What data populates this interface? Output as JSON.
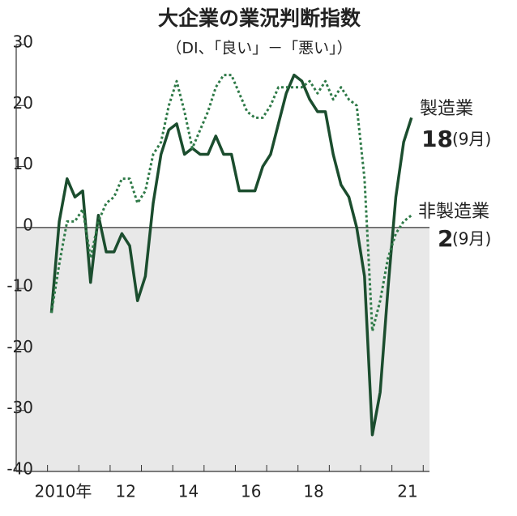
{
  "chart_data": {
    "type": "line",
    "title": "大企業の業況判断指数",
    "subtitle": "（DI、「良い」－「悪い」）",
    "x": [
      2010.125,
      2010.375,
      2010.625,
      2010.875,
      2011.125,
      2011.375,
      2011.625,
      2011.875,
      2012.125,
      2012.375,
      2012.625,
      2012.875,
      2013.125,
      2013.375,
      2013.625,
      2013.875,
      2014.125,
      2014.375,
      2014.625,
      2014.875,
      2015.125,
      2015.375,
      2015.625,
      2015.875,
      2016.125,
      2016.375,
      2016.625,
      2016.875,
      2017.125,
      2017.375,
      2017.625,
      2017.875,
      2018.125,
      2018.375,
      2018.625,
      2018.875,
      2019.125,
      2019.375,
      2019.625,
      2019.875,
      2020.125,
      2020.375,
      2020.625,
      2020.875,
      2021.125,
      2021.375,
      2021.625
    ],
    "series": [
      {
        "name": "製造業",
        "color": "#1b4d2e",
        "dash": false,
        "values": [
          -14,
          1,
          8,
          5,
          6,
          -9,
          2,
          -4,
          -4,
          -1,
          -3,
          -12,
          -8,
          4,
          12,
          16,
          17,
          12,
          13,
          12,
          12,
          15,
          12,
          12,
          6,
          6,
          6,
          10,
          12,
          17,
          22,
          25,
          24,
          21,
          19,
          19,
          12,
          7,
          5,
          0,
          -8,
          -34,
          -27,
          -10,
          5,
          14,
          18
        ]
      },
      {
        "name": "非製造業",
        "color": "#2f7a48",
        "dash": true,
        "values": [
          -14,
          -6,
          1,
          1,
          3,
          -5,
          1,
          4,
          5,
          8,
          8,
          4,
          6,
          12,
          14,
          20,
          24,
          19,
          13,
          16,
          19,
          23,
          25,
          25,
          22,
          19,
          18,
          18,
          20,
          23,
          23,
          23,
          23,
          24,
          22,
          24,
          21,
          23,
          21,
          20,
          8,
          -17,
          -12,
          -5,
          -1,
          1,
          2
        ]
      }
    ],
    "annotations": [
      {
        "value": 18,
        "note": "(9月)"
      },
      {
        "value": 2,
        "note": "(9月)"
      }
    ],
    "xlim": [
      2009,
      2022.2
    ],
    "xticks": [
      {
        "value": 2010.5,
        "label": "2010年"
      },
      {
        "value": 2012.5,
        "label": "12"
      },
      {
        "value": 2014.5,
        "label": "14"
      },
      {
        "value": 2016.5,
        "label": "16"
      },
      {
        "value": 2018.5,
        "label": "18"
      },
      {
        "value": 2021.5,
        "label": "21"
      }
    ],
    "xtick_marks": [
      2010,
      2011,
      2012,
      2013,
      2014,
      2015,
      2016,
      2017,
      2018,
      2019,
      2020,
      2021,
      2022
    ],
    "ylim": [
      -40,
      30
    ],
    "yticks": [
      -40,
      -30,
      -20,
      -10,
      0,
      10,
      20,
      30
    ],
    "negative_shade": "#e8e8e8"
  }
}
